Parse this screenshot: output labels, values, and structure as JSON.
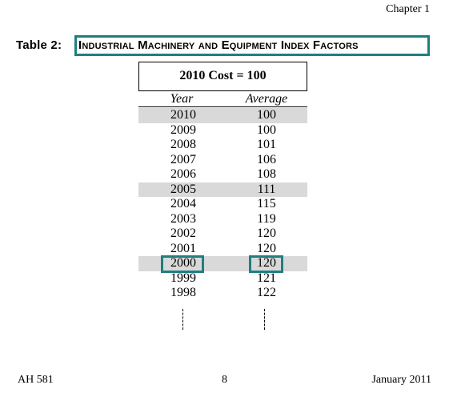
{
  "header": {
    "chapter": "Chapter 1"
  },
  "table": {
    "label": "Table 2:",
    "title": "Industrial Machinery and Equipment Index Factors",
    "caption": "2010 Cost = 100",
    "columns": {
      "year": "Year",
      "average": "Average"
    },
    "rows": [
      {
        "year": "2010",
        "average": "100",
        "shaded": true
      },
      {
        "year": "2009",
        "average": "100",
        "shaded": false
      },
      {
        "year": "2008",
        "average": "101",
        "shaded": false
      },
      {
        "year": "2007",
        "average": "106",
        "shaded": false
      },
      {
        "year": "2006",
        "average": "108",
        "shaded": false
      },
      {
        "year": "2005",
        "average": "111",
        "shaded": true
      },
      {
        "year": "2004",
        "average": "115",
        "shaded": false
      },
      {
        "year": "2003",
        "average": "119",
        "shaded": false
      },
      {
        "year": "2002",
        "average": "120",
        "shaded": false
      },
      {
        "year": "2001",
        "average": "120",
        "shaded": false
      },
      {
        "year": "2000",
        "average": "120",
        "shaded": true
      },
      {
        "year": "1999",
        "average": "121",
        "shaded": false
      },
      {
        "year": "1998",
        "average": "122",
        "shaded": false
      }
    ]
  },
  "footer": {
    "left": "AH 581",
    "center": "8",
    "right": "January 2011"
  },
  "colors": {
    "highlight": "#1f7f7f",
    "shading": "#d9d9d9"
  }
}
